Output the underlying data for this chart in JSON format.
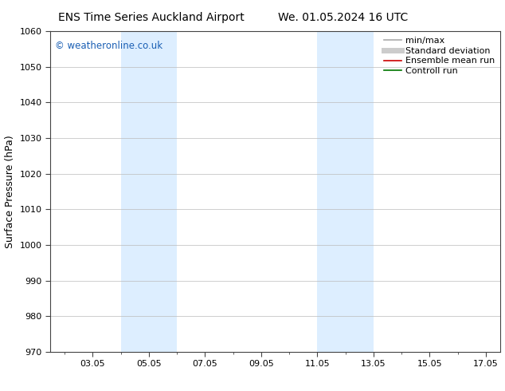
{
  "title": "ENS Time Series Auckland Airport",
  "title2": "We. 01.05.2024 16 UTC",
  "ylabel": "Surface Pressure (hPa)",
  "ylim": [
    970,
    1060
  ],
  "yticks": [
    970,
    980,
    990,
    1000,
    1010,
    1020,
    1030,
    1040,
    1050,
    1060
  ],
  "xlim": [
    1.5,
    17.5
  ],
  "xtick_labels": [
    "03.05",
    "05.05",
    "07.05",
    "09.05",
    "11.05",
    "13.05",
    "15.05",
    "17.05"
  ],
  "xtick_positions": [
    3,
    5,
    7,
    9,
    11,
    13,
    15,
    17
  ],
  "shaded_bands": [
    {
      "x_start": 4.0,
      "x_end": 6.0
    },
    {
      "x_start": 11.0,
      "x_end": 13.0
    }
  ],
  "shaded_color": "#ddeeff",
  "watermark": "© weatheronline.co.uk",
  "watermark_color": "#1a5fb4",
  "legend_items": [
    {
      "label": "min/max",
      "color": "#aaaaaa",
      "lw": 1.2
    },
    {
      "label": "Standard deviation",
      "color": "#cccccc",
      "lw": 5
    },
    {
      "label": "Ensemble mean run",
      "color": "#cc0000",
      "lw": 1.2
    },
    {
      "label": "Controll run",
      "color": "#007700",
      "lw": 1.2
    }
  ],
  "grid_color": "#bbbbbb",
  "bg_color": "#ffffff",
  "spine_color": "#444444",
  "title_fontsize": 10,
  "axis_label_fontsize": 9,
  "tick_fontsize": 8,
  "legend_fontsize": 8
}
